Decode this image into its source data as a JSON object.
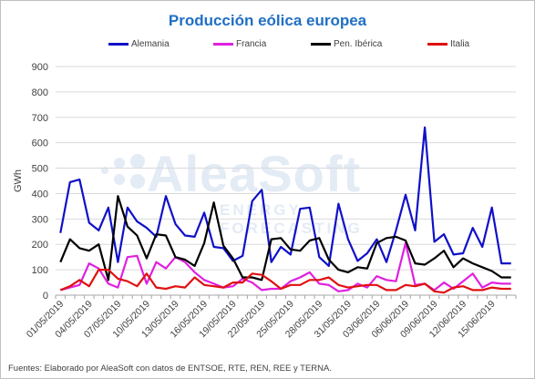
{
  "chart_data": {
    "type": "line",
    "title": "Producción eólica europea",
    "ylabel": "GWh",
    "xlabel": "",
    "ylim": [
      0,
      900
    ],
    "yticks": [
      0,
      100,
      200,
      300,
      400,
      500,
      600,
      700,
      800,
      900
    ],
    "grid": true,
    "legend_position": "top",
    "footer": "Fuentes: Elaborado por AleaSoft con datos de ENTSOE, RTE, REN, REE y TERNA.",
    "watermark": {
      "brand": "AleaSoft",
      "tagline": "ENERGY FORECASTING"
    },
    "x_tick_labels": [
      "01/05/2019",
      "04/05/2019",
      "07/05/2019",
      "10/05/2019",
      "13/05/2019",
      "16/05/2019",
      "19/05/2019",
      "22/05/2019",
      "25/05/2019",
      "28/05/2019",
      "31/05/2019",
      "03/06/2019",
      "06/06/2019",
      "09/06/2019",
      "12/06/2019",
      "15/06/2019"
    ],
    "x_tick_step_days": 3,
    "num_days": 48,
    "series": [
      {
        "name": "Alemania",
        "color": "#1010c8",
        "values": [
          245,
          445,
          455,
          285,
          255,
          345,
          130,
          345,
          290,
          265,
          230,
          390,
          280,
          235,
          230,
          325,
          190,
          185,
          135,
          155,
          370,
          415,
          130,
          190,
          160,
          340,
          345,
          150,
          115,
          360,
          220,
          135,
          165,
          220,
          130,
          255,
          395,
          255,
          660,
          210,
          240,
          160,
          165,
          265,
          190,
          345,
          125,
          125
        ]
      },
      {
        "name": "Francia",
        "color": "#e020e0",
        "values": [
          20,
          30,
          40,
          125,
          105,
          45,
          30,
          150,
          155,
          45,
          130,
          105,
          150,
          130,
          90,
          60,
          45,
          30,
          35,
          65,
          50,
          20,
          25,
          25,
          55,
          70,
          90,
          45,
          40,
          15,
          20,
          45,
          30,
          75,
          60,
          55,
          205,
          40,
          45,
          20,
          50,
          25,
          55,
          85,
          30,
          50,
          45,
          45
        ]
      },
      {
        "name": "Pen. Ibérica",
        "color": "#000000",
        "values": [
          130,
          220,
          185,
          175,
          200,
          60,
          390,
          270,
          235,
          145,
          240,
          235,
          150,
          140,
          115,
          205,
          365,
          195,
          145,
          70,
          70,
          60,
          220,
          225,
          180,
          175,
          215,
          225,
          140,
          100,
          90,
          110,
          105,
          205,
          225,
          230,
          215,
          125,
          120,
          145,
          175,
          110,
          145,
          125,
          110,
          95,
          70,
          70
        ]
      },
      {
        "name": "Italia",
        "color": "#e01010",
        "values": [
          20,
          35,
          60,
          35,
          100,
          100,
          65,
          55,
          35,
          85,
          30,
          25,
          35,
          30,
          70,
          40,
          35,
          30,
          50,
          50,
          85,
          80,
          55,
          25,
          40,
          40,
          60,
          60,
          70,
          40,
          30,
          35,
          40,
          40,
          20,
          20,
          40,
          35,
          45,
          15,
          10,
          30,
          35,
          20,
          20,
          30,
          25,
          25
        ]
      }
    ]
  }
}
